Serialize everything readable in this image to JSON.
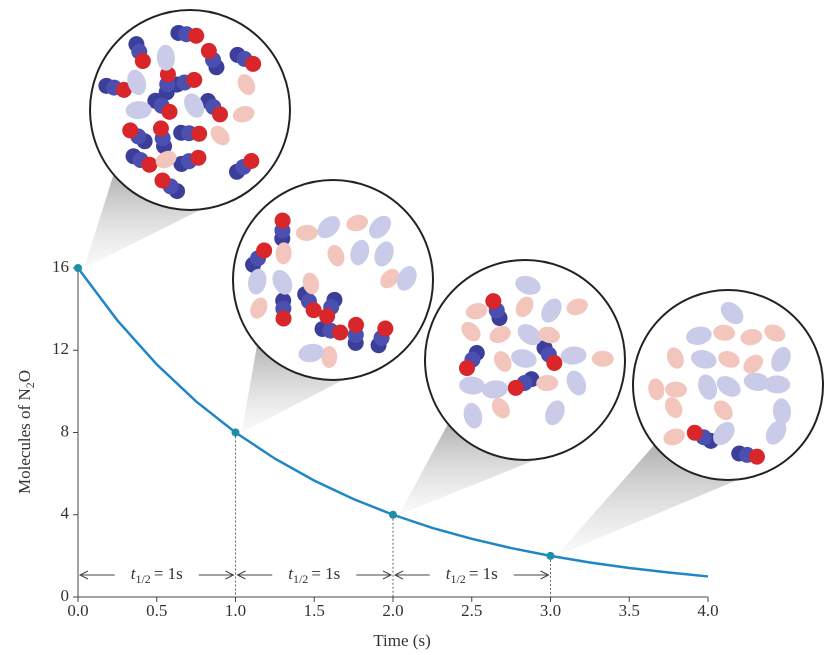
{
  "chart_data": {
    "type": "line",
    "xlabel": "Time (s)",
    "ylabel": [
      "Molecules of N",
      "2",
      "O"
    ],
    "x": [
      0,
      0.25,
      0.5,
      0.75,
      1,
      1.25,
      1.5,
      1.75,
      2,
      2.25,
      2.5,
      2.75,
      3,
      3.25,
      3.5,
      3.75,
      4
    ],
    "series": [
      {
        "color": "#1f86c8",
        "values": [
          16,
          13.45,
          11.31,
          9.51,
          8,
          6.73,
          5.66,
          4.76,
          4,
          3.36,
          2.83,
          2.38,
          2,
          1.68,
          1.41,
          1.19,
          1
        ]
      }
    ],
    "points": {
      "x": [
        0,
        1,
        2,
        3
      ],
      "values": [
        16,
        8,
        4,
        2
      ],
      "color": "#1f8fa8"
    },
    "xlim": [
      0,
      4
    ],
    "ylim": [
      0,
      16
    ],
    "xticks": [
      {
        "value": 0,
        "label": "0.0"
      },
      {
        "value": 0.5,
        "label": "0.5"
      },
      {
        "value": 1,
        "label": "1.0"
      },
      {
        "value": 1.5,
        "label": "1.5"
      },
      {
        "value": 2,
        "label": "2.0"
      },
      {
        "value": 2.5,
        "label": "2.5"
      },
      {
        "value": 3,
        "label": "3.0"
      },
      {
        "value": 3.5,
        "label": "3.5"
      },
      {
        "value": 4,
        "label": "4.0"
      }
    ],
    "yticks": [
      0,
      4,
      8,
      12,
      16
    ],
    "annotations": [
      {
        "t": "t",
        "sub": "1/2",
        "text": "= 1s"
      },
      {
        "t": "t",
        "sub": "1/2",
        "text": "= 1s"
      },
      {
        "t": "t",
        "sub": "1/2",
        "text": "= 1s"
      }
    ]
  }
}
